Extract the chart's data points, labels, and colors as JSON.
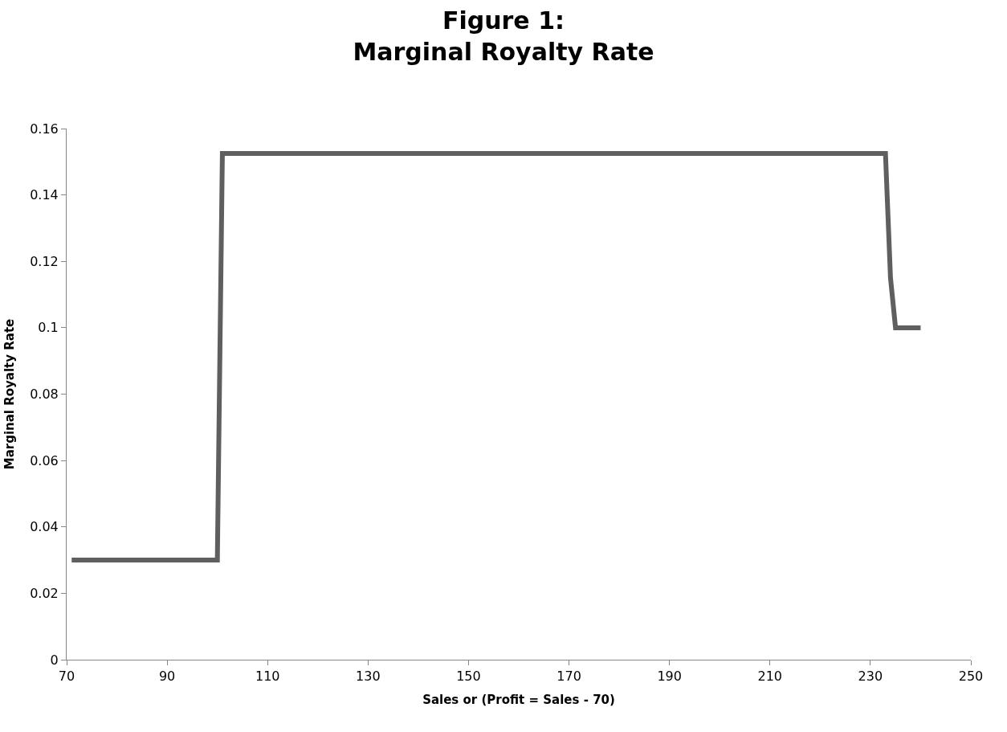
{
  "chart_data": {
    "type": "line",
    "title": "Figure 1:\nMarginal Royalty Rate",
    "xlabel": "Sales or (Profit = Sales - 70)",
    "ylabel": "Marginal Royalty Rate",
    "x": [
      71,
      100,
      101,
      233,
      234,
      235,
      240
    ],
    "series": [
      {
        "color": "#5f5f5f",
        "values": [
          0.03,
          0.03,
          0.1525,
          0.1525,
          0.115,
          0.1,
          0.1
        ]
      }
    ],
    "xlim": [
      70,
      250
    ],
    "xticks": [
      70,
      90,
      110,
      130,
      150,
      170,
      190,
      210,
      230,
      250
    ],
    "ylim": [
      0,
      0.16
    ],
    "yticks": [
      0,
      0.02,
      0.04,
      0.06,
      0.08,
      0.1,
      0.12,
      0.14,
      0.16
    ],
    "marker": "none",
    "line_style": "solid"
  }
}
